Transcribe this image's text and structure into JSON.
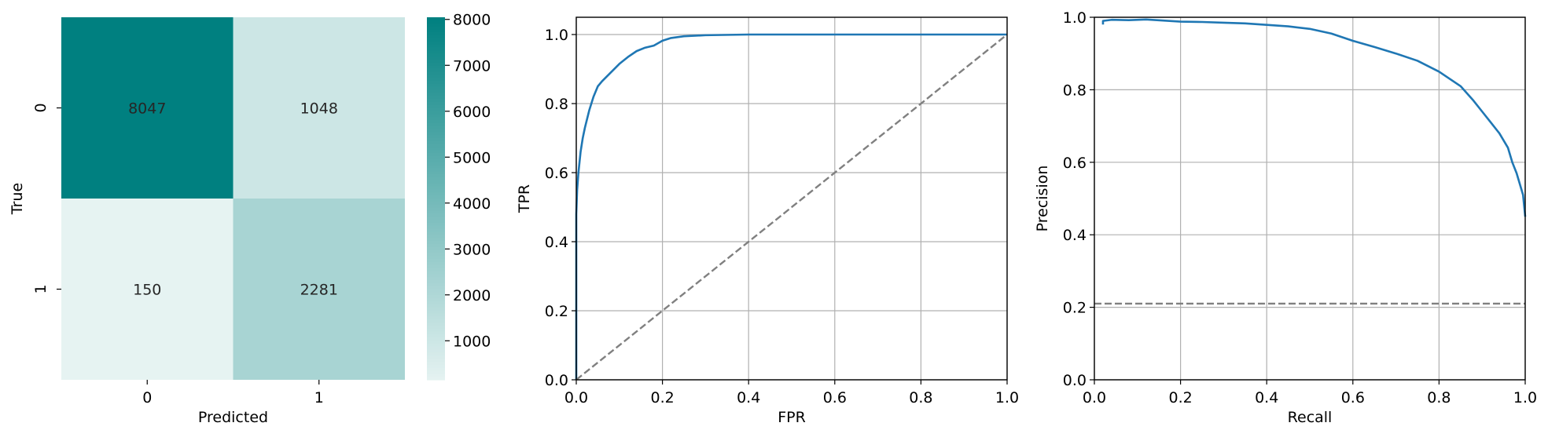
{
  "chart_data": [
    {
      "type": "heatmap",
      "xlabel": "Predicted",
      "ylabel": "True",
      "x_ticks": [
        "0",
        "1"
      ],
      "y_ticks": [
        "0",
        "1"
      ],
      "matrix": [
        [
          8047,
          1048
        ],
        [
          150,
          2281
        ]
      ],
      "colorbar": {
        "vmin": 150,
        "vmax": 8047,
        "ticks": [
          1000,
          2000,
          3000,
          4000,
          5000,
          6000,
          7000,
          8000
        ]
      },
      "colors": {
        "low": "#e6f3f2",
        "high": "#008080"
      }
    },
    {
      "type": "line",
      "xlabel": "FPR",
      "ylabel": "TPR",
      "xlim": [
        0.0,
        1.0
      ],
      "ylim": [
        0.0,
        1.05
      ],
      "x_ticks": [
        0.0,
        0.2,
        0.4,
        0.6,
        0.8,
        1.0
      ],
      "y_ticks": [
        0.0,
        0.2,
        0.4,
        0.6,
        0.8,
        1.0
      ],
      "grid": true,
      "series": [
        {
          "style": "solid",
          "color": "#1f77b4",
          "x": [
            0.0,
            0.0,
            0.002,
            0.005,
            0.01,
            0.015,
            0.02,
            0.03,
            0.04,
            0.05,
            0.06,
            0.08,
            0.1,
            0.12,
            0.14,
            0.16,
            0.18,
            0.2,
            0.22,
            0.25,
            0.3,
            0.4,
            0.6,
            0.8,
            1.0
          ],
          "y": [
            0.0,
            0.48,
            0.55,
            0.6,
            0.66,
            0.7,
            0.73,
            0.78,
            0.82,
            0.85,
            0.865,
            0.89,
            0.915,
            0.935,
            0.952,
            0.962,
            0.968,
            0.982,
            0.99,
            0.995,
            0.998,
            1.0,
            1.0,
            1.0,
            1.0
          ]
        },
        {
          "style": "dashed",
          "color": "#808080",
          "x": [
            0.0,
            1.0
          ],
          "y": [
            0.0,
            1.0
          ]
        }
      ]
    },
    {
      "type": "line",
      "xlabel": "Recall",
      "ylabel": "Precision",
      "xlim": [
        0.0,
        1.0
      ],
      "ylim": [
        0.0,
        1.0
      ],
      "x_ticks": [
        0.0,
        0.2,
        0.4,
        0.6,
        0.8,
        1.0
      ],
      "y_ticks": [
        0.0,
        0.2,
        0.4,
        0.6,
        0.8,
        1.0
      ],
      "grid": true,
      "series": [
        {
          "style": "solid",
          "color": "#1f77b4",
          "x": [
            0.02,
            0.02,
            0.04,
            0.08,
            0.12,
            0.16,
            0.2,
            0.25,
            0.3,
            0.35,
            0.4,
            0.45,
            0.5,
            0.55,
            0.6,
            0.65,
            0.7,
            0.75,
            0.8,
            0.85,
            0.88,
            0.9,
            0.92,
            0.94,
            0.96,
            0.97,
            0.98,
            0.985,
            0.99,
            0.995,
            1.0
          ],
          "y": [
            0.98,
            0.99,
            0.993,
            0.992,
            0.994,
            0.991,
            0.988,
            0.987,
            0.985,
            0.983,
            0.979,
            0.975,
            0.968,
            0.955,
            0.935,
            0.918,
            0.9,
            0.88,
            0.85,
            0.81,
            0.77,
            0.74,
            0.71,
            0.68,
            0.64,
            0.6,
            0.57,
            0.55,
            0.53,
            0.51,
            0.45
          ]
        },
        {
          "style": "dashed",
          "color": "#808080",
          "x": [
            0.0,
            1.0
          ],
          "y": [
            0.21,
            0.21
          ]
        }
      ]
    }
  ]
}
